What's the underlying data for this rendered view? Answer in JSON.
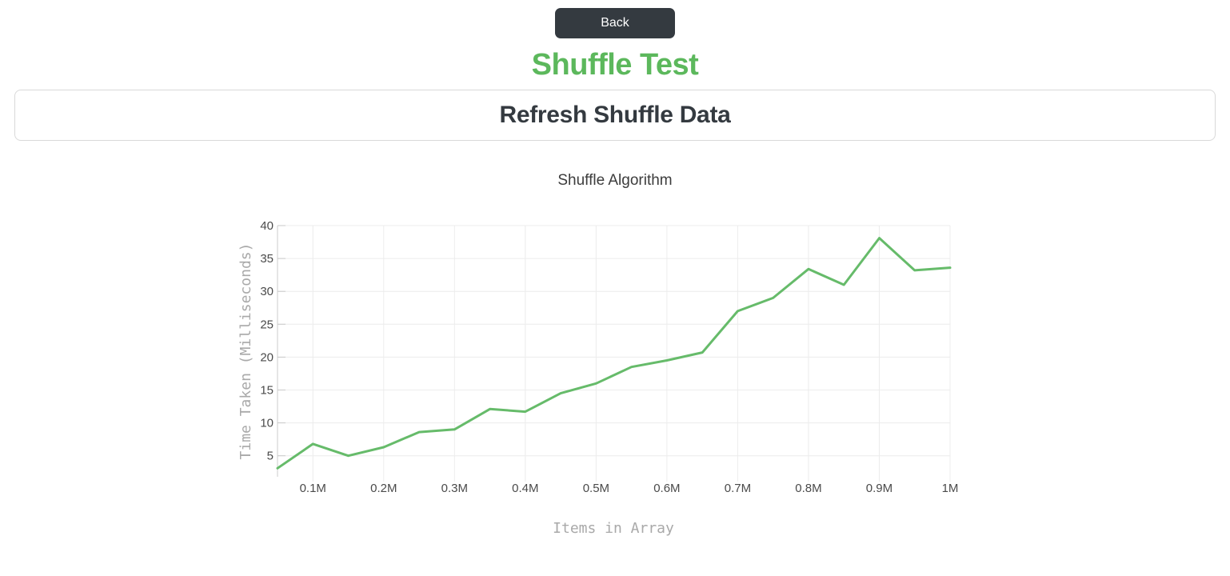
{
  "header": {
    "back_label": "Back",
    "page_title": "Shuffle Test",
    "refresh_label": "Refresh Shuffle Data"
  },
  "colors": {
    "page_title_green": "#5cb85c",
    "back_button_bg": "#343a40",
    "line_green": "#66bb6a",
    "grid": "#ececec",
    "axis": "#cccccc",
    "tick_text": "#4a4a4a",
    "axis_title_text": "#a9a9a9"
  },
  "chart_data": {
    "type": "line",
    "title": "Shuffle Algorithm",
    "xlabel": "Items in Array",
    "ylabel": "Time Taken (Milliseconds)",
    "x_units": "millions of items",
    "x": [
      0.05,
      0.1,
      0.15,
      0.2,
      0.25,
      0.3,
      0.35,
      0.4,
      0.45,
      0.5,
      0.55,
      0.6,
      0.65,
      0.7,
      0.75,
      0.8,
      0.85,
      0.9,
      0.95,
      1.0
    ],
    "series": [
      {
        "name": "Shuffle Algorithm",
        "values": [
          3.1,
          6.8,
          5.0,
          6.3,
          8.6,
          9.0,
          12.1,
          11.7,
          14.5,
          16.0,
          18.5,
          19.5,
          20.7,
          27.0,
          29.0,
          33.4,
          31.0,
          38.1,
          33.2,
          33.6
        ]
      }
    ],
    "x_ticks": {
      "values": [
        0.1,
        0.2,
        0.3,
        0.4,
        0.5,
        0.6,
        0.7,
        0.8,
        0.9,
        1.0
      ],
      "labels": [
        "0.1M",
        "0.2M",
        "0.3M",
        "0.4M",
        "0.5M",
        "0.6M",
        "0.7M",
        "0.8M",
        "0.9M",
        "1M"
      ]
    },
    "y_ticks": [
      5,
      10,
      15,
      20,
      25,
      30,
      35,
      40
    ],
    "xlim": [
      0.05,
      1.0
    ],
    "ylim": [
      1.8,
      40
    ],
    "grid": true,
    "legend": "none"
  }
}
